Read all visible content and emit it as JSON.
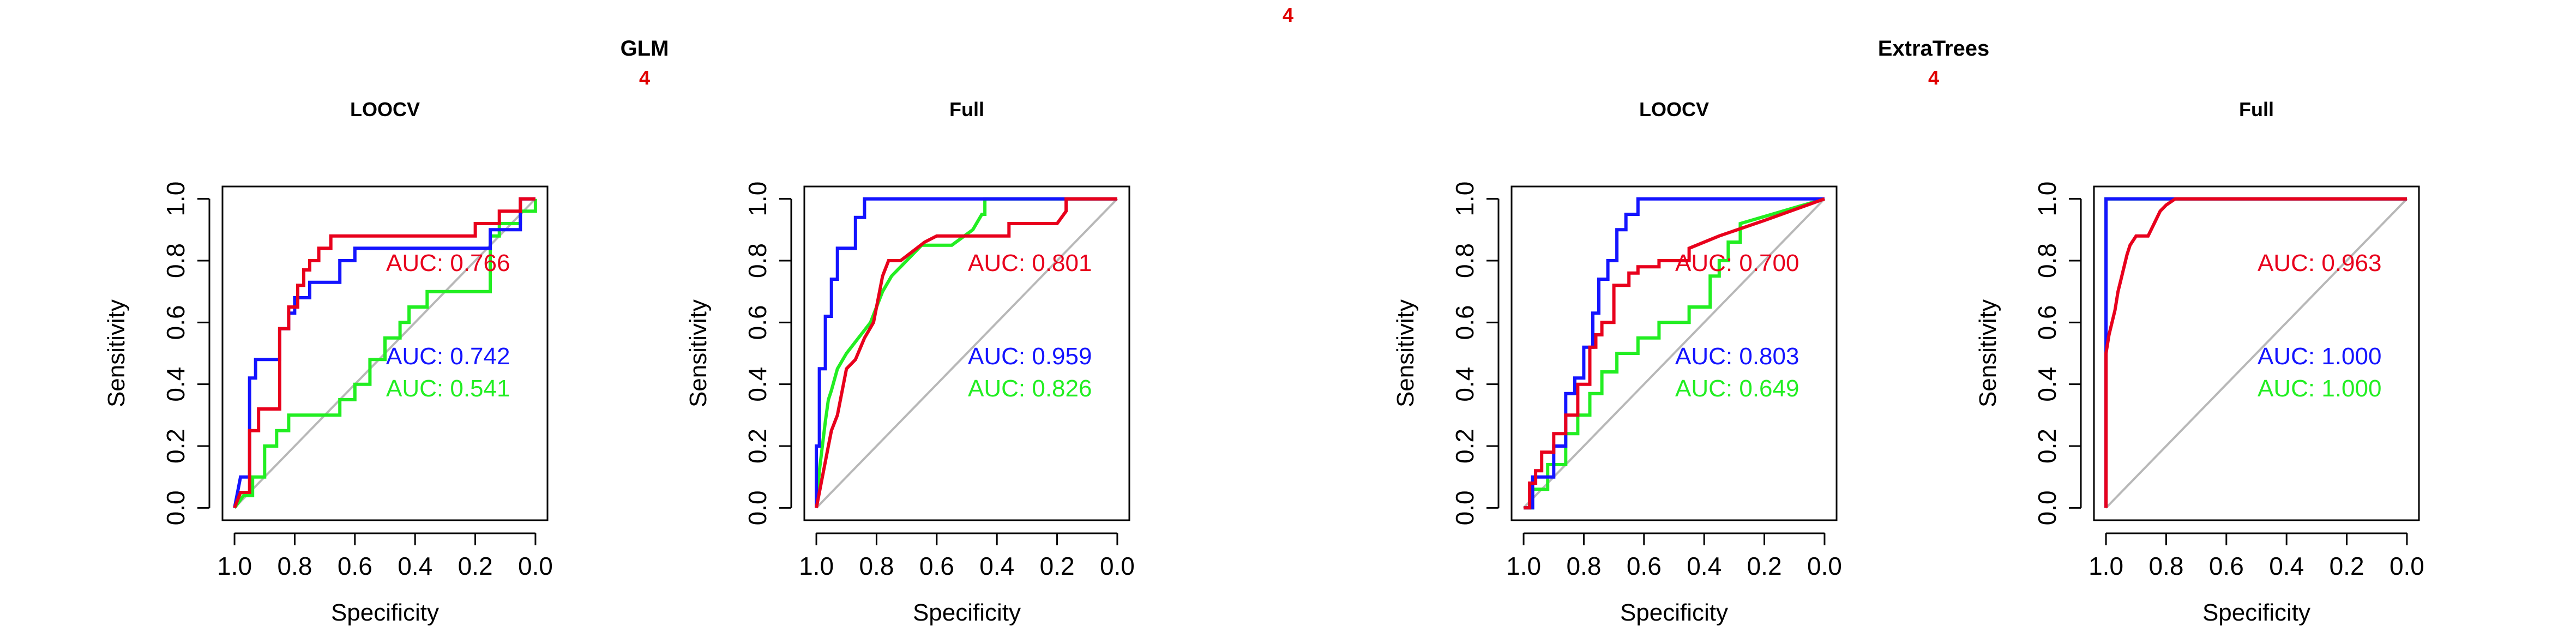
{
  "figure": {
    "top_marker": "4",
    "colors": {
      "red": "#e8001c",
      "blue": "#1414ff",
      "green": "#22ee22",
      "diag": "#b8b8b8",
      "marker": "#e00000"
    },
    "groups": [
      {
        "title": "GLM",
        "marker": "4"
      },
      {
        "title": "ExtraTrees",
        "marker": "4"
      }
    ]
  },
  "chart_data": [
    {
      "type": "line",
      "title": "LOOCV",
      "group": "GLM",
      "xlabel": "Specificity",
      "ylabel": "Sensitivity",
      "xlim": [
        1.0,
        0.0
      ],
      "ylim": [
        0.0,
        1.0
      ],
      "xticks": [
        "1.0",
        "0.8",
        "0.6",
        "0.4",
        "0.2",
        "0.0"
      ],
      "yticks": [
        "0.0",
        "0.2",
        "0.4",
        "0.6",
        "0.8",
        "1.0"
      ],
      "diagonal": true,
      "series": [
        {
          "color": "red",
          "auc_label": "AUC: 0.766",
          "x": [
            1.0,
            0.98,
            0.95,
            0.95,
            0.92,
            0.92,
            0.85,
            0.85,
            0.82,
            0.82,
            0.79,
            0.79,
            0.77,
            0.77,
            0.75,
            0.75,
            0.72,
            0.72,
            0.68,
            0.68,
            0.62,
            0.62,
            0.2,
            0.2,
            0.12,
            0.12,
            0.05,
            0.05,
            0.0
          ],
          "y": [
            0.0,
            0.05,
            0.05,
            0.25,
            0.25,
            0.32,
            0.32,
            0.58,
            0.58,
            0.65,
            0.65,
            0.72,
            0.72,
            0.77,
            0.77,
            0.8,
            0.8,
            0.84,
            0.84,
            0.88,
            0.88,
            0.88,
            0.88,
            0.92,
            0.92,
            0.96,
            0.96,
            1.0,
            1.0
          ]
        },
        {
          "color": "blue",
          "auc_label": "AUC: 0.742",
          "x": [
            1.0,
            0.98,
            0.95,
            0.95,
            0.93,
            0.93,
            0.85,
            0.85,
            0.82,
            0.82,
            0.8,
            0.8,
            0.75,
            0.75,
            0.65,
            0.65,
            0.6,
            0.6,
            0.15,
            0.15,
            0.05,
            0.05,
            0.0
          ],
          "y": [
            0.0,
            0.1,
            0.1,
            0.42,
            0.42,
            0.48,
            0.48,
            0.58,
            0.58,
            0.63,
            0.63,
            0.68,
            0.68,
            0.73,
            0.73,
            0.8,
            0.8,
            0.84,
            0.84,
            0.9,
            0.9,
            1.0,
            1.0
          ]
        },
        {
          "color": "green",
          "auc_label": "AUC: 0.541",
          "x": [
            1.0,
            0.97,
            0.94,
            0.94,
            0.9,
            0.9,
            0.86,
            0.86,
            0.82,
            0.82,
            0.65,
            0.65,
            0.6,
            0.6,
            0.55,
            0.55,
            0.5,
            0.5,
            0.45,
            0.45,
            0.42,
            0.42,
            0.36,
            0.36,
            0.15,
            0.15,
            0.12,
            0.12,
            0.05,
            0.05,
            0.0,
            0.0
          ],
          "y": [
            0.0,
            0.04,
            0.04,
            0.1,
            0.1,
            0.2,
            0.2,
            0.25,
            0.25,
            0.3,
            0.3,
            0.35,
            0.35,
            0.4,
            0.4,
            0.48,
            0.48,
            0.55,
            0.55,
            0.6,
            0.6,
            0.65,
            0.65,
            0.7,
            0.7,
            0.88,
            0.88,
            0.92,
            0.92,
            0.96,
            0.96,
            1.0
          ]
        }
      ]
    },
    {
      "type": "line",
      "title": "Full",
      "group": "GLM",
      "xlabel": "Specificity",
      "ylabel": "Sensitivity",
      "xlim": [
        1.0,
        0.0
      ],
      "ylim": [
        0.0,
        1.0
      ],
      "xticks": [
        "1.0",
        "0.8",
        "0.6",
        "0.4",
        "0.2",
        "0.0"
      ],
      "yticks": [
        "0.0",
        "0.2",
        "0.4",
        "0.6",
        "0.8",
        "1.0"
      ],
      "diagonal": true,
      "series": [
        {
          "color": "red",
          "auc_label": "AUC: 0.801",
          "x": [
            1.0,
            0.99,
            0.98,
            0.97,
            0.96,
            0.95,
            0.93,
            0.9,
            0.87,
            0.84,
            0.81,
            0.79,
            0.78,
            0.76,
            0.72,
            0.68,
            0.64,
            0.6,
            0.55,
            0.5,
            0.45,
            0.4,
            0.36,
            0.36,
            0.2,
            0.17,
            0.17,
            0.0
          ],
          "y": [
            0.0,
            0.05,
            0.1,
            0.15,
            0.2,
            0.25,
            0.3,
            0.45,
            0.48,
            0.55,
            0.6,
            0.7,
            0.75,
            0.8,
            0.8,
            0.83,
            0.86,
            0.88,
            0.88,
            0.88,
            0.88,
            0.88,
            0.88,
            0.92,
            0.92,
            0.96,
            1.0,
            1.0
          ]
        },
        {
          "color": "blue",
          "auc_label": "AUC: 0.959",
          "x": [
            1.0,
            1.0,
            0.99,
            0.99,
            0.97,
            0.97,
            0.95,
            0.95,
            0.93,
            0.93,
            0.87,
            0.87,
            0.84,
            0.84,
            0.0
          ],
          "y": [
            0.0,
            0.2,
            0.2,
            0.45,
            0.45,
            0.62,
            0.62,
            0.74,
            0.74,
            0.84,
            0.84,
            0.94,
            0.94,
            1.0,
            1.0
          ]
        },
        {
          "color": "green",
          "auc_label": "AUC: 0.826",
          "x": [
            1.0,
            0.99,
            0.98,
            0.97,
            0.96,
            0.95,
            0.93,
            0.9,
            0.86,
            0.82,
            0.78,
            0.75,
            0.7,
            0.65,
            0.6,
            0.55,
            0.48,
            0.45,
            0.44,
            0.44,
            0.0
          ],
          "y": [
            0.0,
            0.12,
            0.2,
            0.28,
            0.35,
            0.38,
            0.45,
            0.5,
            0.55,
            0.6,
            0.7,
            0.75,
            0.8,
            0.85,
            0.85,
            0.85,
            0.9,
            0.95,
            0.95,
            1.0,
            1.0
          ]
        }
      ]
    },
    {
      "type": "line",
      "title": "LOOCV",
      "group": "ExtraTrees",
      "xlabel": "Specificity",
      "ylabel": "Sensitivity",
      "xlim": [
        1.0,
        0.0
      ],
      "ylim": [
        0.0,
        1.0
      ],
      "xticks": [
        "1.0",
        "0.8",
        "0.6",
        "0.4",
        "0.2",
        "0.0"
      ],
      "yticks": [
        "0.0",
        "0.2",
        "0.4",
        "0.6",
        "0.8",
        "1.0"
      ],
      "diagonal": true,
      "series": [
        {
          "color": "red",
          "auc_label": "AUC: 0.700",
          "x": [
            1.0,
            0.98,
            0.98,
            0.96,
            0.96,
            0.94,
            0.94,
            0.9,
            0.9,
            0.86,
            0.86,
            0.82,
            0.82,
            0.78,
            0.78,
            0.76,
            0.76,
            0.74,
            0.74,
            0.7,
            0.7,
            0.65,
            0.65,
            0.62,
            0.62,
            0.55,
            0.55,
            0.45,
            0.45,
            0.35,
            0.2,
            0.0
          ],
          "y": [
            0.0,
            0.0,
            0.08,
            0.08,
            0.12,
            0.12,
            0.18,
            0.18,
            0.24,
            0.24,
            0.3,
            0.3,
            0.4,
            0.4,
            0.52,
            0.52,
            0.56,
            0.56,
            0.6,
            0.6,
            0.72,
            0.72,
            0.76,
            0.76,
            0.78,
            0.78,
            0.8,
            0.8,
            0.84,
            0.88,
            0.93,
            1.0
          ]
        },
        {
          "color": "blue",
          "auc_label": "AUC: 0.803",
          "x": [
            1.0,
            0.97,
            0.97,
            0.9,
            0.9,
            0.86,
            0.86,
            0.83,
            0.83,
            0.8,
            0.8,
            0.77,
            0.77,
            0.75,
            0.75,
            0.72,
            0.72,
            0.69,
            0.69,
            0.66,
            0.66,
            0.62,
            0.62,
            0.22,
            0.22,
            0.0
          ],
          "y": [
            0.0,
            0.0,
            0.1,
            0.1,
            0.2,
            0.2,
            0.37,
            0.37,
            0.42,
            0.42,
            0.52,
            0.52,
            0.63,
            0.63,
            0.74,
            0.74,
            0.8,
            0.8,
            0.9,
            0.9,
            0.95,
            0.95,
            1.0,
            1.0,
            1.0,
            1.0
          ]
        },
        {
          "color": "green",
          "auc_label": "AUC: 0.649",
          "x": [
            1.0,
            0.97,
            0.97,
            0.92,
            0.92,
            0.86,
            0.86,
            0.82,
            0.82,
            0.78,
            0.78,
            0.74,
            0.74,
            0.69,
            0.69,
            0.62,
            0.62,
            0.55,
            0.55,
            0.45,
            0.45,
            0.38,
            0.38,
            0.35,
            0.35,
            0.32,
            0.32,
            0.28,
            0.28,
            0.0
          ],
          "y": [
            0.0,
            0.0,
            0.06,
            0.06,
            0.14,
            0.14,
            0.24,
            0.24,
            0.3,
            0.3,
            0.37,
            0.37,
            0.44,
            0.44,
            0.5,
            0.5,
            0.55,
            0.55,
            0.6,
            0.6,
            0.65,
            0.65,
            0.75,
            0.75,
            0.8,
            0.8,
            0.86,
            0.86,
            0.92,
            1.0
          ]
        }
      ]
    },
    {
      "type": "line",
      "title": "Full",
      "group": "ExtraTrees",
      "xlabel": "Specificity",
      "ylabel": "Sensitivity",
      "xlim": [
        1.0,
        0.0
      ],
      "ylim": [
        0.0,
        1.0
      ],
      "xticks": [
        "1.0",
        "0.8",
        "0.6",
        "0.4",
        "0.2",
        "0.0"
      ],
      "yticks": [
        "0.0",
        "0.2",
        "0.4",
        "0.6",
        "0.8",
        "1.0"
      ],
      "diagonal": true,
      "series": [
        {
          "color": "red",
          "auc_label": "AUC: 0.963",
          "x": [
            1.0,
            1.0,
            0.99,
            0.98,
            0.97,
            0.96,
            0.95,
            0.94,
            0.93,
            0.92,
            0.9,
            0.88,
            0.86,
            0.84,
            0.82,
            0.8,
            0.77,
            0.0
          ],
          "y": [
            0.0,
            0.5,
            0.56,
            0.6,
            0.64,
            0.7,
            0.74,
            0.78,
            0.82,
            0.85,
            0.88,
            0.88,
            0.88,
            0.92,
            0.96,
            0.98,
            1.0,
            1.0
          ]
        },
        {
          "color": "blue",
          "auc_label": "AUC: 1.000",
          "x": [
            1.0,
            1.0,
            0.0
          ],
          "y": [
            0.0,
            1.0,
            1.0
          ]
        },
        {
          "color": "green",
          "auc_label": "AUC: 1.000",
          "x": [
            1.0,
            1.0,
            0.0
          ],
          "y": [
            0.0,
            1.0,
            1.0
          ]
        }
      ]
    }
  ]
}
